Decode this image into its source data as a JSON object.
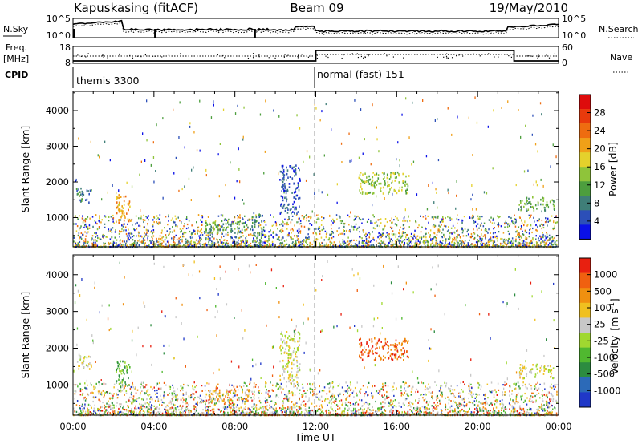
{
  "header": {
    "station": "Kapuskasing (fitACF)",
    "beam": "Beam 09",
    "date": "19/May/2010"
  },
  "param_labels": {
    "nsky": "N.Sky",
    "freq_top": "Freq.",
    "freq_unit": "[MHz]",
    "cpid": "CPID",
    "nsearch": "N.Search",
    "nave": "Nave",
    "nsky_ticks": [
      "10^5",
      "10^0"
    ],
    "nsearch_ticks": [
      "10^5",
      "10^0"
    ],
    "freq_ticks": [
      "18",
      "8"
    ],
    "nave_ticks": [
      "60",
      "0"
    ]
  },
  "cpid_segments": [
    {
      "label": "themis 3300",
      "start_hour": 0
    },
    {
      "label": "normal (fast) 151",
      "start_hour": 12
    }
  ],
  "chart_data": [
    {
      "type": "heatmap",
      "title": "",
      "xlabel": "Time UT",
      "ylabel": "Slant Range [km]",
      "x_ticks": [
        "00:00",
        "04:00",
        "08:00",
        "12:00",
        "16:00",
        "20:00",
        "00:00"
      ],
      "xlim_hours": [
        0,
        24
      ],
      "y_ticks": [
        1000,
        2000,
        3000,
        4000
      ],
      "ylim": [
        180,
        4540
      ],
      "colorbar": {
        "label": "Power [dB]",
        "ticks": [
          "4",
          "8",
          "12",
          "16",
          "20",
          "24",
          "28"
        ],
        "colors": [
          "#0a10e8",
          "#2c4fb8",
          "#3f7e78",
          "#4d9e3e",
          "#8fc43a",
          "#e5d12c",
          "#f0a018",
          "#ee6c10",
          "#e83a0c",
          "#de0c0c"
        ]
      },
      "echo_regions": [
        {
          "t_start": 0.1,
          "t_end": 0.9,
          "r_min": 1450,
          "r_max": 1850,
          "level": 2
        },
        {
          "t_start": 2.1,
          "t_end": 2.8,
          "r_min": 850,
          "r_max": 1700,
          "level": 6
        },
        {
          "t_start": 6.5,
          "t_end": 8.7,
          "r_min": 600,
          "r_max": 900,
          "level": 3
        },
        {
          "t_start": 8.8,
          "t_end": 9.4,
          "r_min": 200,
          "r_max": 1200,
          "level": 2
        },
        {
          "t_start": 10.2,
          "t_end": 11.2,
          "r_min": 1100,
          "r_max": 2500,
          "level": 1
        },
        {
          "t_start": 14.1,
          "t_end": 16.6,
          "r_min": 1700,
          "r_max": 2300,
          "level": 4
        },
        {
          "t_start": 22.0,
          "t_end": 23.8,
          "r_min": 1200,
          "r_max": 1600,
          "level": 3
        }
      ]
    },
    {
      "type": "heatmap",
      "title": "",
      "xlabel": "Time UT",
      "ylabel": "Slant Range [km]",
      "x_ticks": [
        "00:00",
        "04:00",
        "08:00",
        "12:00",
        "16:00",
        "20:00",
        "00:00"
      ],
      "xlim_hours": [
        0,
        24
      ],
      "y_ticks": [
        1000,
        2000,
        3000,
        4000
      ],
      "ylim": [
        180,
        4540
      ],
      "colorbar": {
        "label": "Velocity [m s^-1]",
        "label_main": "Velocity",
        "label_unit": "[m s",
        "label_exp": "-1",
        "ticks": [
          "1000",
          "500",
          "100",
          "25",
          "-25",
          "-100",
          "-500",
          "-1000"
        ],
        "colors": [
          "#2038c8",
          "#2c6ab8",
          "#2c8c40",
          "#50b830",
          "#a0d830",
          "#c8c8c8",
          "#f0c020",
          "#f09010",
          "#f06010",
          "#e82010"
        ]
      },
      "echo_regions": [
        {
          "t_start": 0.1,
          "t_end": 0.9,
          "r_min": 1450,
          "r_max": 1850,
          "level": 5
        },
        {
          "t_start": 2.1,
          "t_end": 2.8,
          "r_min": 850,
          "r_max": 1700,
          "level": 3
        },
        {
          "t_start": 6.5,
          "t_end": 8.7,
          "r_min": 600,
          "r_max": 900,
          "level": 6
        },
        {
          "t_start": 10.2,
          "t_end": 11.2,
          "r_min": 1100,
          "r_max": 2500,
          "level": 5
        },
        {
          "t_start": 14.1,
          "t_end": 16.6,
          "r_min": 1700,
          "r_max": 2300,
          "level": 8
        },
        {
          "t_start": 22.0,
          "t_end": 23.8,
          "r_min": 1200,
          "r_max": 1600,
          "level": 5
        }
      ]
    }
  ]
}
